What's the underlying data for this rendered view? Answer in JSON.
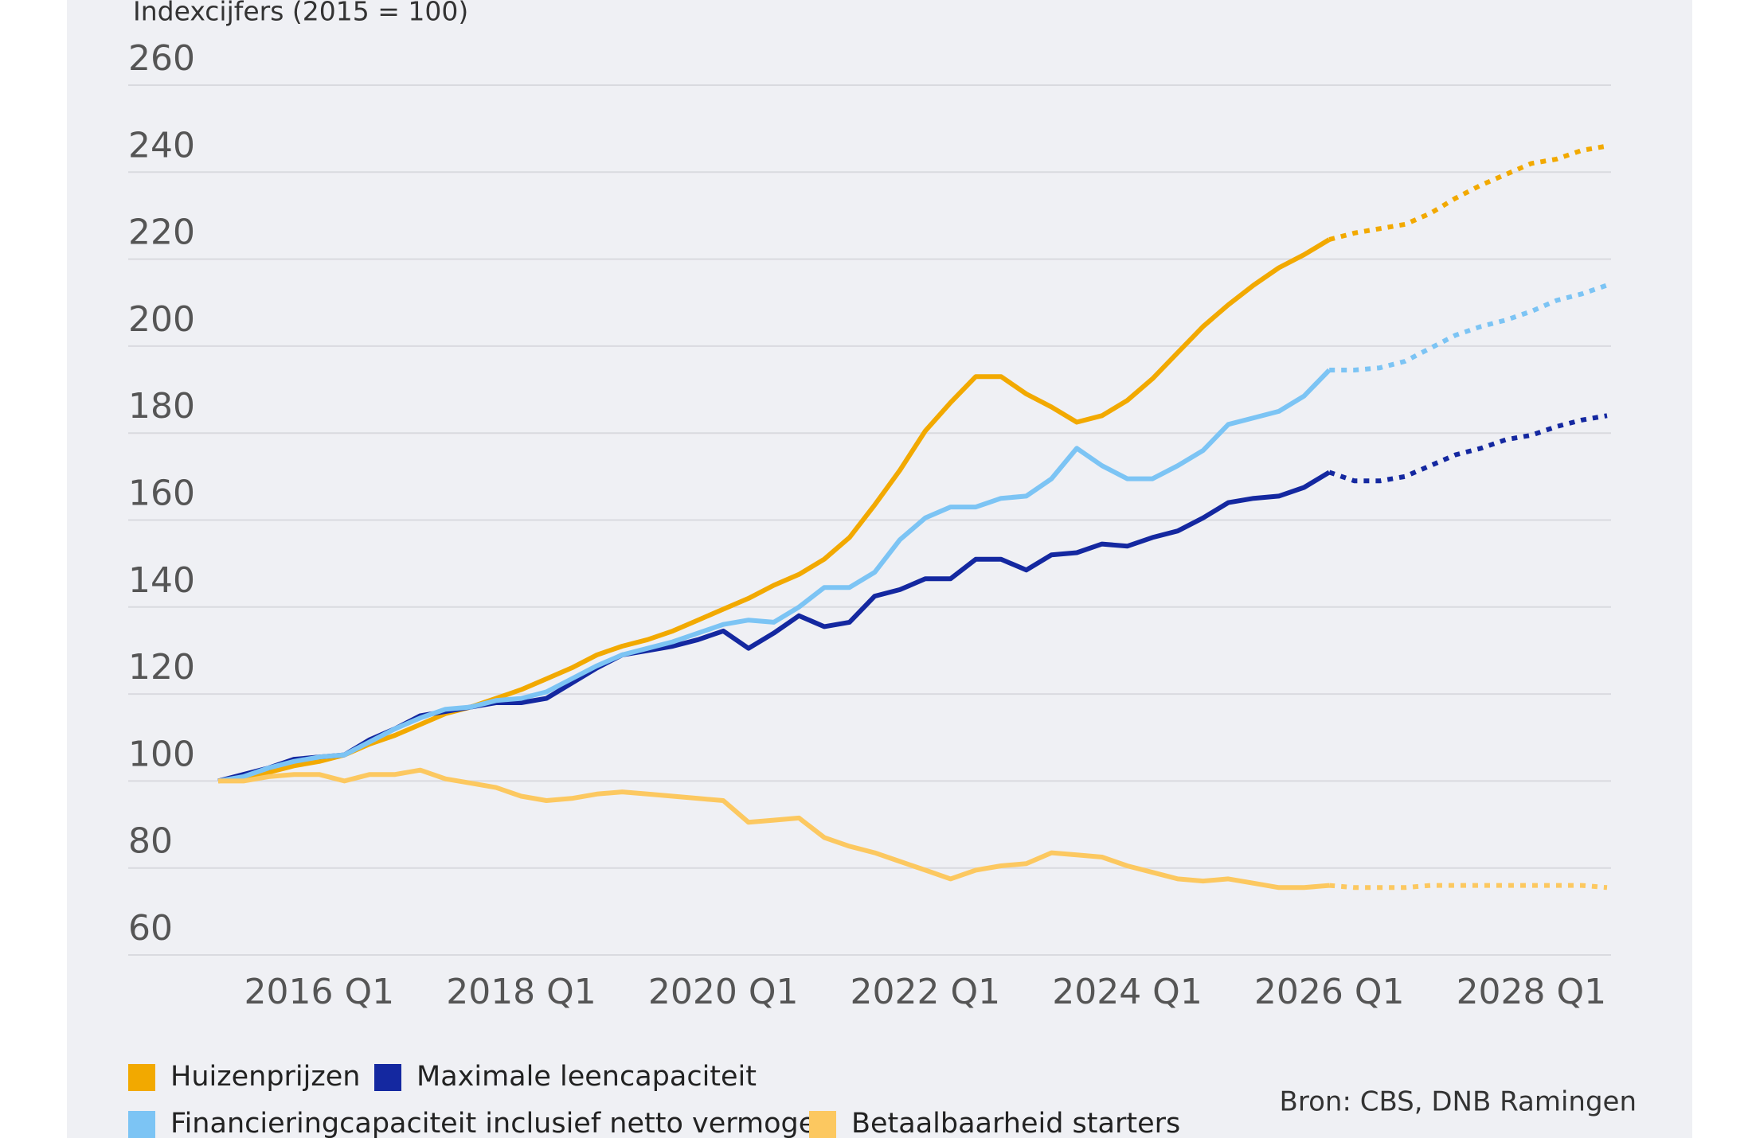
{
  "chart_data": {
    "type": "line",
    "subtitle": "Indexcijfers (2015 = 100)",
    "source": "Bron: CBS, DNB Ramingen",
    "categories": [
      null,
      null,
      null,
      null,
      "2016 Q1",
      null,
      null,
      null,
      null,
      null,
      null,
      null,
      "2018 Q1",
      null,
      null,
      null,
      null,
      null,
      null,
      null,
      "2020 Q1",
      null,
      null,
      null,
      null,
      null,
      null,
      null,
      "2022 Q1",
      null,
      null,
      null,
      null,
      null,
      null,
      null,
      "2024 Q1",
      null,
      null,
      null,
      null,
      null,
      null,
      null,
      "2026 Q1",
      null,
      null,
      null,
      null,
      null,
      null,
      null,
      "2028 Q1",
      null,
      null,
      null
    ],
    "ylim": [
      60,
      260
    ],
    "yticks": [
      60,
      80,
      100,
      120,
      140,
      160,
      180,
      200,
      220,
      240,
      260
    ],
    "grid": true,
    "legend": "bottom",
    "series": [
      {
        "name": "Huizenprijzen",
        "color": "#f2a900",
        "values": [
          100,
          101,
          102,
          103.5,
          104.5,
          106,
          108.5,
          110.5,
          113,
          115.5,
          117,
          119,
          121,
          123.5,
          126,
          129,
          131,
          132.5,
          134.5,
          137,
          139.5,
          142,
          145,
          147.5,
          151,
          156,
          163.5,
          171.5,
          180.5,
          187,
          193,
          193,
          189,
          186,
          182.5,
          184,
          187.5,
          192.5,
          198.5,
          204.5,
          209.5,
          214,
          218,
          221,
          224.5,
          null,
          null,
          null,
          null,
          null,
          null,
          null,
          null,
          null,
          null,
          null
        ],
        "forecast": [
          null,
          null,
          null,
          null,
          null,
          null,
          null,
          null,
          null,
          null,
          null,
          null,
          null,
          null,
          null,
          null,
          null,
          null,
          null,
          null,
          null,
          null,
          null,
          null,
          null,
          null,
          null,
          null,
          null,
          null,
          null,
          null,
          null,
          null,
          null,
          null,
          null,
          null,
          null,
          null,
          null,
          null,
          null,
          null,
          224.5,
          226,
          227,
          228,
          230.5,
          234,
          237,
          239.5,
          242,
          243,
          245,
          246
        ]
      },
      {
        "name": "Maximale leencapaciteit",
        "color": "#1428a0",
        "values": [
          100,
          101.5,
          103,
          105,
          105.5,
          106,
          109.5,
          112,
          115,
          116,
          117,
          118,
          118,
          119,
          122.5,
          126,
          129,
          130,
          131,
          132.5,
          134.5,
          130.5,
          134,
          138,
          135.5,
          136.5,
          142.5,
          144,
          146.5,
          146.5,
          151,
          151,
          148.5,
          152,
          152.5,
          154.5,
          154,
          156,
          157.5,
          160.5,
          164,
          165,
          165.5,
          167.5,
          171,
          null,
          null,
          null,
          null,
          null,
          null,
          null,
          null,
          null,
          null,
          null
        ],
        "forecast": [
          null,
          null,
          null,
          null,
          null,
          null,
          null,
          null,
          null,
          null,
          null,
          null,
          null,
          null,
          null,
          null,
          null,
          null,
          null,
          null,
          null,
          null,
          null,
          null,
          null,
          null,
          null,
          null,
          null,
          null,
          null,
          null,
          null,
          null,
          null,
          null,
          null,
          null,
          null,
          null,
          null,
          null,
          null,
          null,
          171,
          169,
          169,
          170,
          172.5,
          175,
          176.5,
          178.5,
          179.5,
          181.5,
          183,
          184
        ]
      },
      {
        "name": "Financieringcapaciteit inclusief netto vermogen",
        "color": "#7cc4f4",
        "values": [
          100,
          101,
          103,
          104.5,
          105.5,
          106,
          109,
          112,
          114.5,
          116.5,
          117,
          118.5,
          119,
          120.5,
          123.5,
          126.5,
          129,
          130.5,
          132,
          134,
          136,
          137,
          136.5,
          140,
          144.5,
          144.5,
          148,
          155.5,
          160.5,
          163,
          163,
          165,
          165.5,
          169.5,
          176.5,
          172.5,
          169.5,
          169.5,
          172.5,
          176,
          182,
          183.5,
          185,
          188.5,
          194.5,
          null,
          null,
          null,
          null,
          null,
          null,
          null,
          null,
          null,
          null,
          null
        ],
        "forecast": [
          null,
          null,
          null,
          null,
          null,
          null,
          null,
          null,
          null,
          null,
          null,
          null,
          null,
          null,
          null,
          null,
          null,
          null,
          null,
          null,
          null,
          null,
          null,
          null,
          null,
          null,
          null,
          null,
          null,
          null,
          null,
          null,
          null,
          null,
          null,
          null,
          null,
          null,
          null,
          null,
          null,
          null,
          null,
          null,
          194.5,
          194.5,
          195,
          196.5,
          199.5,
          202.5,
          204.5,
          206,
          208,
          210.5,
          212,
          214
        ]
      },
      {
        "name": "Betaalbaarheid starters",
        "color": "#fcc860",
        "values": [
          100,
          100,
          101,
          101.5,
          101.5,
          100,
          101.5,
          101.5,
          102.5,
          100.5,
          99.5,
          98.5,
          96.5,
          95.5,
          96,
          97,
          97.5,
          97,
          96.5,
          96,
          95.5,
          90.5,
          91,
          91.5,
          87,
          85,
          83.5,
          81.5,
          79.5,
          77.5,
          79.5,
          80.5,
          81,
          83.5,
          83,
          82.5,
          80.5,
          79,
          77.5,
          77,
          77.5,
          76.5,
          75.5,
          75.5,
          76,
          null,
          null,
          null,
          null,
          null,
          null,
          null,
          null,
          null,
          null,
          null
        ],
        "forecast": [
          null,
          null,
          null,
          null,
          null,
          null,
          null,
          null,
          null,
          null,
          null,
          null,
          null,
          null,
          null,
          null,
          null,
          null,
          null,
          null,
          null,
          null,
          null,
          null,
          null,
          null,
          null,
          null,
          null,
          null,
          null,
          null,
          null,
          null,
          null,
          null,
          null,
          null,
          null,
          null,
          null,
          null,
          null,
          null,
          76,
          75.5,
          75.5,
          75.5,
          76,
          76,
          76,
          76,
          76,
          76,
          76,
          75.5
        ]
      }
    ]
  }
}
